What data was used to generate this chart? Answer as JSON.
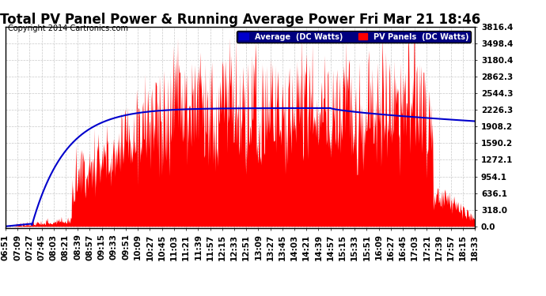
{
  "title": "Total PV Panel Power & Running Average Power Fri Mar 21 18:46",
  "copyright": "Copyright 2014 Cartronics.com",
  "legend_avg": "Average  (DC Watts)",
  "legend_pv": "PV Panels  (DC Watts)",
  "yticks": [
    0.0,
    318.0,
    636.1,
    954.1,
    1272.1,
    1590.2,
    1908.2,
    2226.3,
    2544.3,
    2862.3,
    3180.4,
    3498.4,
    3816.4
  ],
  "ymax": 3816.4,
  "ymin": 0.0,
  "bg_color": "#ffffff",
  "plot_bg_color": "#ffffff",
  "grid_color": "#bbbbbb",
  "pv_color": "#ff0000",
  "avg_color": "#0000cc",
  "title_fontsize": 12,
  "tick_fontsize": 7.5,
  "copyright_fontsize": 7,
  "x_tick_labels": [
    "06:51",
    "07:09",
    "07:27",
    "07:45",
    "08:03",
    "08:21",
    "08:39",
    "08:57",
    "09:15",
    "09:33",
    "09:51",
    "10:09",
    "10:27",
    "10:45",
    "11:03",
    "11:21",
    "11:39",
    "11:57",
    "12:15",
    "12:33",
    "12:51",
    "13:09",
    "13:27",
    "13:45",
    "14:03",
    "14:21",
    "14:39",
    "14:57",
    "15:15",
    "15:33",
    "15:51",
    "16:09",
    "16:27",
    "16:45",
    "17:03",
    "17:21",
    "17:39",
    "17:57",
    "18:15",
    "18:33"
  ]
}
